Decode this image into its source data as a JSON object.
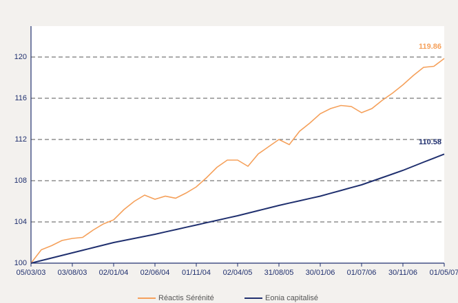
{
  "chart_data": {
    "type": "line",
    "categories": [
      "05/03/03",
      null,
      null,
      null,
      "03/08/03",
      null,
      null,
      null,
      "02/01/04",
      null,
      null,
      null,
      "02/06/04",
      null,
      null,
      null,
      "01/11/04",
      null,
      null,
      null,
      "02/04/05",
      null,
      null,
      null,
      "31/08/05",
      null,
      null,
      null,
      "30/01/06",
      null,
      null,
      null,
      "01/07/06",
      null,
      null,
      null,
      "30/11/06",
      null,
      null,
      null,
      "01/05/07"
    ],
    "series": [
      {
        "name": "Réactis Sérénité",
        "color": "#f5a05a",
        "values": [
          100.0,
          101.3,
          101.7,
          102.2,
          102.4,
          102.5,
          103.2,
          103.8,
          104.2,
          105.2,
          106.0,
          106.6,
          106.2,
          106.5,
          106.3,
          106.8,
          107.4,
          108.3,
          109.3,
          110.0,
          110.0,
          109.4,
          110.6,
          111.3,
          112.0,
          111.5,
          112.8,
          113.6,
          114.5,
          115.0,
          115.3,
          115.2,
          114.6,
          115.0,
          115.8,
          116.5,
          117.3,
          118.2,
          119.0,
          119.1,
          119.86
        ]
      },
      {
        "name": "Eonia capitalisé",
        "color": "#1f2f6e",
        "values": [
          100.0,
          100.25,
          100.5,
          100.75,
          101.0,
          101.25,
          101.5,
          101.75,
          102.0,
          102.2,
          102.4,
          102.6,
          102.8,
          103.03,
          103.25,
          103.48,
          103.7,
          103.93,
          104.15,
          104.38,
          104.6,
          104.85,
          105.1,
          105.35,
          105.6,
          105.83,
          106.05,
          106.28,
          106.5,
          106.78,
          107.05,
          107.33,
          107.6,
          107.95,
          108.3,
          108.65,
          109.0,
          109.4,
          109.8,
          110.19,
          110.58
        ]
      }
    ],
    "ylim": [
      100,
      120
    ],
    "yticks": [
      100,
      104,
      108,
      112,
      116,
      120
    ],
    "grid": true
  }
}
